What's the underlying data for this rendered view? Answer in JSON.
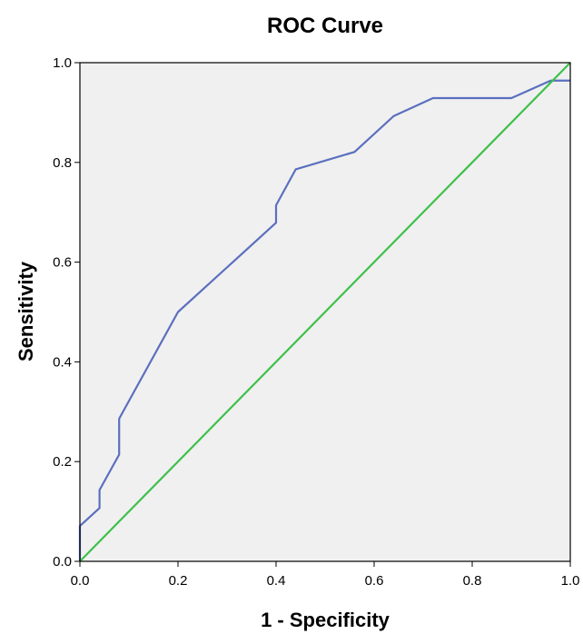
{
  "chart_data": {
    "type": "line",
    "title": "ROC Curve",
    "xlabel": "1 - Specificity",
    "ylabel": "Sensitivity",
    "xlim": [
      0.0,
      1.0
    ],
    "ylim": [
      0.0,
      1.0
    ],
    "x_ticks": [
      "0.0",
      "0.2",
      "0.4",
      "0.6",
      "0.8",
      "1.0"
    ],
    "y_ticks": [
      "0.0",
      "0.2",
      "0.4",
      "0.6",
      "0.8",
      "1.0"
    ],
    "grid": false,
    "legend": "none",
    "plot_background": "#f0f0f0",
    "series": [
      {
        "color": "#5b6fbf",
        "x": [
          0.0,
          0.0,
          0.04,
          0.04,
          0.08,
          0.08,
          0.2,
          0.4,
          0.4,
          0.44,
          0.56,
          0.64,
          0.72,
          0.88,
          0.96,
          1.0
        ],
        "y": [
          0.0,
          0.071,
          0.107,
          0.143,
          0.214,
          0.286,
          0.5,
          0.679,
          0.714,
          0.786,
          0.821,
          0.893,
          0.929,
          0.929,
          0.964,
          0.964
        ]
      },
      {
        "color": "#3ec04a",
        "x": [
          0.0,
          1.0
        ],
        "y": [
          0.0,
          1.0
        ]
      }
    ]
  }
}
